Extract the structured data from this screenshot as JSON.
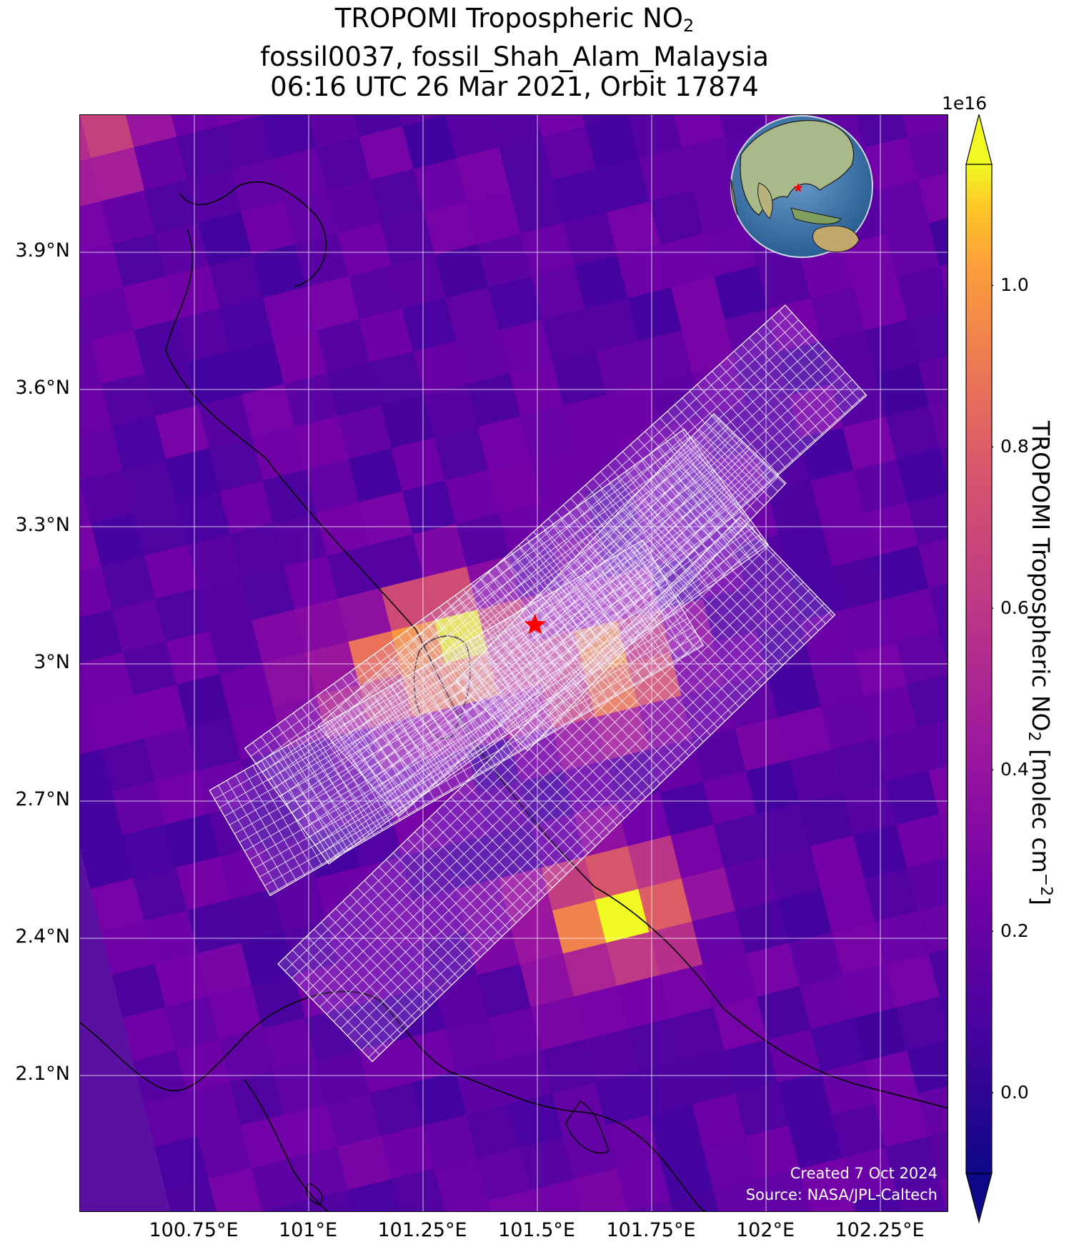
{
  "title": {
    "line1_prefix": "TROPOMI Tropospheric NO",
    "line1_sub": "2",
    "line2": "fossil0037, fossil_Shah_Alam_Malaysia",
    "line3": "06:16 UTC 26 Mar 2021, Orbit 17874"
  },
  "map": {
    "lon_range": [
      100.5,
      102.4
    ],
    "lat_range": [
      1.8,
      4.2
    ],
    "lat_ticks": [
      {
        "value": 3.9,
        "label": "3.9°N"
      },
      {
        "value": 3.6,
        "label": "3.6°N"
      },
      {
        "value": 3.3,
        "label": "3.3°N"
      },
      {
        "value": 3.0,
        "label": "3°N"
      },
      {
        "value": 2.7,
        "label": "2.7°N"
      },
      {
        "value": 2.4,
        "label": "2.4°N"
      },
      {
        "value": 2.1,
        "label": "2.1°N"
      }
    ],
    "lon_ticks": [
      {
        "value": 100.75,
        "label": "100.75°E"
      },
      {
        "value": 101.0,
        "label": "101°E"
      },
      {
        "value": 101.25,
        "label": "101.25°E"
      },
      {
        "value": 101.5,
        "label": "101.5°E"
      },
      {
        "value": 101.75,
        "label": "101.75°E"
      },
      {
        "value": 102.0,
        "label": "102°E"
      },
      {
        "value": 102.25,
        "label": "102.25°E"
      }
    ],
    "target": {
      "name": "fossil_Shah_Alam_Malaysia",
      "lon": 101.495,
      "lat": 3.085,
      "color": "#ff0000"
    },
    "gridline_color": "#ffffff",
    "background_color": "#5a10a0",
    "credit_line1": "Created 7 Oct 2024",
    "credit_line2": "Source: NASA/JPL-Caltech"
  },
  "colorbar": {
    "colormap": "plasma",
    "vmin": -1000000000000000.0,
    "vmax": 1.15e+16,
    "exponent_label": "1e16",
    "ticks": [
      {
        "value": 0.0,
        "label": "0.0"
      },
      {
        "value": 0.2,
        "label": "0.2"
      },
      {
        "value": 0.4,
        "label": "0.4"
      },
      {
        "value": 0.6,
        "label": "0.6"
      },
      {
        "value": 0.8,
        "label": "0.8"
      },
      {
        "value": 1.0,
        "label": "1.0"
      }
    ],
    "label_prefix": "TROPOMI Tropospheric NO",
    "label_sub": "2",
    "label_mid": " [molec cm",
    "label_sup": "−2",
    "label_suffix": "]",
    "extend": "both"
  },
  "chart_data": {
    "type": "heatmap",
    "description_source": "satellite NO2 column overlay with target-mode footprints",
    "hotspots": [
      {
        "lon": 101.27,
        "lat": 3.08,
        "value": 1.1
      },
      {
        "lon": 101.6,
        "lat": 3.03,
        "value": 1.05
      },
      {
        "lon": 101.62,
        "lat": 2.49,
        "value": 1.1
      },
      {
        "lon": 101.1,
        "lat": 2.98,
        "value": 0.7
      },
      {
        "lon": 100.45,
        "lat": 4.2,
        "value": 0.65
      }
    ]
  },
  "inset_globe": {
    "marker_color": "#ff0000"
  }
}
